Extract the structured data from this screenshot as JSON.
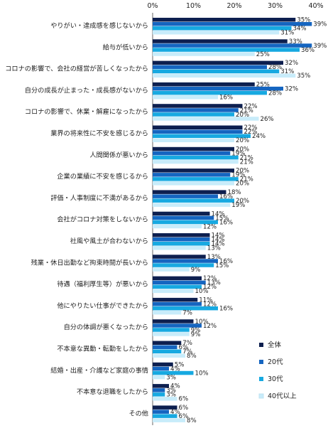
{
  "chart_data": {
    "type": "bar",
    "orientation": "horizontal",
    "xlim": [
      0,
      40
    ],
    "xticks": [
      "0%",
      "10%",
      "20%",
      "30%",
      "40%"
    ],
    "unit": "%",
    "grid": false,
    "legend_position": "bottom-right",
    "categories": [
      "やりがい・達成感を感じないから",
      "給与が低いから",
      "コロナの影響で、会社の経営が苦しくなったから",
      "自分の成長が止まった・成長感がないから",
      "コロナの影響で、休業・解雇になったから",
      "業界の将来性に不安を感じるから",
      "人間関係が悪いから",
      "企業の業績に不安を感じるから",
      "評価・人事制度に不満があるから",
      "会社がコロナ対策をしないから",
      "社風や風土が合わないから",
      "残業・休日出勤など拘束時間が長いから",
      "待遇（福利厚生等）が悪いから",
      "他にやりたい仕事ができたから",
      "自分の体調が悪くなったから",
      "不本意な異動・転勤をしたから",
      "結婚・出産・介護など家庭の事情",
      "不本意な退職をしたから",
      "その他"
    ],
    "series": [
      {
        "name": "全体",
        "color": "#0d1f4f",
        "values": [
          35,
          33,
          32,
          25,
          22,
          22,
          20,
          20,
          18,
          14,
          14,
          13,
          12,
          11,
          10,
          7,
          5,
          4,
          6
        ]
      },
      {
        "name": "20代",
        "color": "#1565c0",
        "values": [
          39,
          39,
          28,
          32,
          21,
          22,
          19,
          19,
          16,
          15,
          14,
          16,
          13,
          12,
          12,
          6,
          4,
          3,
          4
        ]
      },
      {
        "name": "30代",
        "color": "#17a9e1",
        "values": [
          34,
          36,
          31,
          28,
          20,
          24,
          21,
          21,
          20,
          16,
          14,
          15,
          12,
          16,
          9,
          7,
          10,
          3,
          6
        ]
      },
      {
        "name": "40代以上",
        "color": "#c8ecfa",
        "values": [
          31,
          25,
          35,
          16,
          26,
          20,
          21,
          20,
          19,
          12,
          13,
          9,
          10,
          7,
          9,
          8,
          3,
          6,
          8
        ]
      }
    ]
  }
}
